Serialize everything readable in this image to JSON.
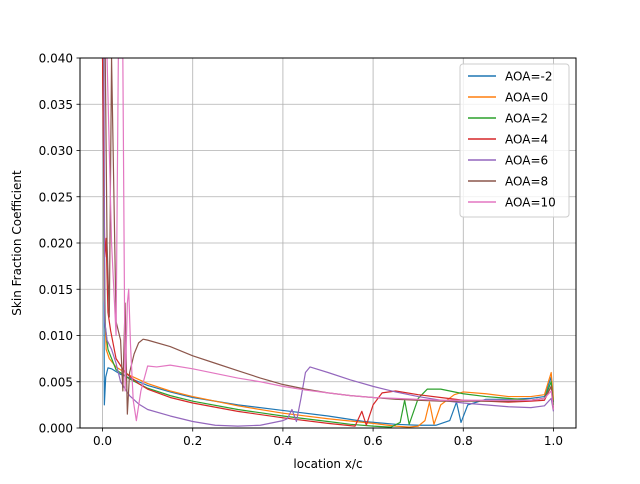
{
  "chart_data": {
    "type": "line",
    "title": "",
    "xlabel": "location x/c",
    "ylabel": "Skin Fraction Coefficient",
    "xlim": [
      -0.05,
      1.05
    ],
    "ylim": [
      0.0,
      0.04
    ],
    "xticks": [
      "0.0",
      "0.2",
      "0.4",
      "0.6",
      "0.8",
      "1.0"
    ],
    "xtick_values": [
      0.0,
      0.2,
      0.4,
      0.6,
      0.8,
      1.0
    ],
    "yticks": [
      "0.000",
      "0.005",
      "0.010",
      "0.015",
      "0.020",
      "0.025",
      "0.030",
      "0.035",
      "0.040"
    ],
    "ytick_values": [
      0.0,
      0.005,
      0.01,
      0.015,
      0.02,
      0.025,
      0.03,
      0.035,
      0.04
    ],
    "grid": true,
    "legend_position": "top-right",
    "series": [
      {
        "name": "AOA=-2",
        "color": "#1f77b4",
        "points": [
          [
            0.0,
            0.04
          ],
          [
            0.002,
            0.0305
          ],
          [
            0.004,
            0.0025
          ],
          [
            0.007,
            0.0055
          ],
          [
            0.012,
            0.0065
          ],
          [
            0.02,
            0.0064
          ],
          [
            0.04,
            0.0058
          ],
          [
            0.07,
            0.0052
          ],
          [
            0.1,
            0.0046
          ],
          [
            0.15,
            0.0039
          ],
          [
            0.2,
            0.0033
          ],
          [
            0.3,
            0.0025
          ],
          [
            0.4,
            0.0019
          ],
          [
            0.5,
            0.0013
          ],
          [
            0.58,
            0.0007
          ],
          [
            0.65,
            0.0004
          ],
          [
            0.7,
            0.0003
          ],
          [
            0.74,
            0.0003
          ],
          [
            0.77,
            0.0008
          ],
          [
            0.785,
            0.0028
          ],
          [
            0.795,
            0.0006
          ],
          [
            0.81,
            0.0025
          ],
          [
            0.85,
            0.0031
          ],
          [
            0.9,
            0.0031
          ],
          [
            0.95,
            0.0032
          ],
          [
            0.98,
            0.0034
          ],
          [
            0.995,
            0.0055
          ],
          [
            1.0,
            0.0028
          ]
        ]
      },
      {
        "name": "AOA=0",
        "color": "#ff7f0e",
        "points": [
          [
            0.0,
            0.04
          ],
          [
            0.002,
            0.034
          ],
          [
            0.004,
            0.014
          ],
          [
            0.008,
            0.0085
          ],
          [
            0.015,
            0.0075
          ],
          [
            0.03,
            0.0066
          ],
          [
            0.06,
            0.0057
          ],
          [
            0.1,
            0.0048
          ],
          [
            0.15,
            0.004
          ],
          [
            0.2,
            0.0034
          ],
          [
            0.3,
            0.0024
          ],
          [
            0.4,
            0.0016
          ],
          [
            0.5,
            0.001
          ],
          [
            0.6,
            0.0005
          ],
          [
            0.65,
            0.0002
          ],
          [
            0.68,
            0.0001
          ],
          [
            0.7,
            0.0002
          ],
          [
            0.715,
            0.0008
          ],
          [
            0.725,
            0.0028
          ],
          [
            0.735,
            0.0004
          ],
          [
            0.75,
            0.0025
          ],
          [
            0.78,
            0.0036
          ],
          [
            0.8,
            0.0039
          ],
          [
            0.85,
            0.0037
          ],
          [
            0.9,
            0.0034
          ],
          [
            0.95,
            0.0034
          ],
          [
            0.98,
            0.0036
          ],
          [
            0.995,
            0.006
          ],
          [
            1.0,
            0.003
          ]
        ]
      },
      {
        "name": "AOA=2",
        "color": "#2ca02c",
        "points": [
          [
            0.0,
            0.04
          ],
          [
            0.002,
            0.036
          ],
          [
            0.004,
            0.02
          ],
          [
            0.006,
            0.011
          ],
          [
            0.012,
            0.0085
          ],
          [
            0.03,
            0.0063
          ],
          [
            0.06,
            0.0053
          ],
          [
            0.1,
            0.0043
          ],
          [
            0.15,
            0.0035
          ],
          [
            0.2,
            0.0029
          ],
          [
            0.3,
            0.002
          ],
          [
            0.4,
            0.0013
          ],
          [
            0.5,
            0.0007
          ],
          [
            0.55,
            0.0004
          ],
          [
            0.6,
            0.0002
          ],
          [
            0.64,
            0.0001
          ],
          [
            0.66,
            0.0006
          ],
          [
            0.67,
            0.003
          ],
          [
            0.68,
            0.0004
          ],
          [
            0.7,
            0.0032
          ],
          [
            0.72,
            0.0042
          ],
          [
            0.75,
            0.0042
          ],
          [
            0.8,
            0.0037
          ],
          [
            0.85,
            0.0034
          ],
          [
            0.9,
            0.0032
          ],
          [
            0.95,
            0.003
          ],
          [
            0.98,
            0.0032
          ],
          [
            0.995,
            0.005
          ],
          [
            1.0,
            0.0025
          ]
        ]
      },
      {
        "name": "AOA=4",
        "color": "#d62728",
        "points": [
          [
            0.0,
            0.04
          ],
          [
            0.002,
            0.03
          ],
          [
            0.005,
            0.0185
          ],
          [
            0.008,
            0.0205
          ],
          [
            0.012,
            0.0125
          ],
          [
            0.018,
            0.0105
          ],
          [
            0.03,
            0.0075
          ],
          [
            0.05,
            0.006
          ],
          [
            0.08,
            0.0048
          ],
          [
            0.1,
            0.0042
          ],
          [
            0.15,
            0.0033
          ],
          [
            0.2,
            0.0027
          ],
          [
            0.3,
            0.0018
          ],
          [
            0.4,
            0.0011
          ],
          [
            0.5,
            0.0005
          ],
          [
            0.56,
            0.0002
          ],
          [
            0.575,
            0.0018
          ],
          [
            0.585,
            0.0003
          ],
          [
            0.6,
            0.0025
          ],
          [
            0.62,
            0.0038
          ],
          [
            0.65,
            0.004
          ],
          [
            0.7,
            0.0036
          ],
          [
            0.75,
            0.0033
          ],
          [
            0.8,
            0.003
          ],
          [
            0.85,
            0.0029
          ],
          [
            0.9,
            0.0028
          ],
          [
            0.95,
            0.0029
          ],
          [
            0.98,
            0.003
          ],
          [
            0.995,
            0.0045
          ],
          [
            1.0,
            0.002
          ]
        ]
      },
      {
        "name": "AOA=6",
        "color": "#9467bd",
        "points": [
          [
            0.0,
            0.04
          ],
          [
            0.003,
            0.04
          ],
          [
            0.005,
            0.0115
          ],
          [
            0.01,
            0.0095
          ],
          [
            0.02,
            0.0085
          ],
          [
            0.03,
            0.007
          ],
          [
            0.04,
            0.005
          ],
          [
            0.06,
            0.0035
          ],
          [
            0.08,
            0.0026
          ],
          [
            0.1,
            0.002
          ],
          [
            0.15,
            0.0013
          ],
          [
            0.2,
            0.0007
          ],
          [
            0.25,
            0.0003
          ],
          [
            0.3,
            0.0002
          ],
          [
            0.35,
            0.0003
          ],
          [
            0.4,
            0.0008
          ],
          [
            0.41,
            0.001
          ],
          [
            0.42,
            0.002
          ],
          [
            0.43,
            0.0007
          ],
          [
            0.44,
            0.0032
          ],
          [
            0.45,
            0.006
          ],
          [
            0.46,
            0.0066
          ],
          [
            0.5,
            0.006
          ],
          [
            0.55,
            0.0052
          ],
          [
            0.6,
            0.0045
          ],
          [
            0.65,
            0.0039
          ],
          [
            0.7,
            0.0034
          ],
          [
            0.75,
            0.003
          ],
          [
            0.8,
            0.0027
          ],
          [
            0.85,
            0.0025
          ],
          [
            0.9,
            0.0023
          ],
          [
            0.95,
            0.0022
          ],
          [
            0.98,
            0.0024
          ],
          [
            0.995,
            0.0032
          ],
          [
            1.0,
            0.0018
          ]
        ]
      },
      {
        "name": "AOA=8",
        "color": "#8c564b",
        "points": [
          [
            0.003,
            0.04
          ],
          [
            0.006,
            0.04
          ],
          [
            0.01,
            0.02
          ],
          [
            0.015,
            0.012
          ],
          [
            0.02,
            0.04
          ],
          [
            0.03,
            0.0115
          ],
          [
            0.04,
            0.0095
          ],
          [
            0.045,
            0.004
          ],
          [
            0.05,
            0.0135
          ],
          [
            0.055,
            0.0015
          ],
          [
            0.06,
            0.006
          ],
          [
            0.07,
            0.008
          ],
          [
            0.08,
            0.0092
          ],
          [
            0.09,
            0.0096
          ],
          [
            0.1,
            0.0095
          ],
          [
            0.15,
            0.0088
          ],
          [
            0.2,
            0.0078
          ],
          [
            0.25,
            0.007
          ],
          [
            0.3,
            0.0062
          ],
          [
            0.35,
            0.0054
          ],
          [
            0.4,
            0.0047
          ],
          [
            0.45,
            0.0042
          ],
          [
            0.5,
            0.0038
          ],
          [
            0.55,
            0.0035
          ],
          [
            0.6,
            0.0033
          ],
          [
            0.65,
            0.0031
          ],
          [
            0.7,
            0.003
          ],
          [
            0.75,
            0.0029
          ],
          [
            0.8,
            0.0029
          ],
          [
            0.85,
            0.0029
          ],
          [
            0.9,
            0.0029
          ],
          [
            0.95,
            0.003
          ],
          [
            0.98,
            0.0032
          ],
          [
            0.995,
            0.0045
          ],
          [
            1.0,
            0.002
          ]
        ]
      },
      {
        "name": "AOA=10",
        "color": "#e377c2",
        "points": [
          [
            0.0,
            0.04
          ],
          [
            0.01,
            0.04
          ],
          [
            0.02,
            0.02
          ],
          [
            0.03,
            0.01
          ],
          [
            0.035,
            0.04
          ],
          [
            0.045,
            0.04
          ],
          [
            0.05,
            0.004
          ],
          [
            0.055,
            0.0135
          ],
          [
            0.058,
            0.015
          ],
          [
            0.062,
            0.009
          ],
          [
            0.068,
            0.003
          ],
          [
            0.075,
            0.0008
          ],
          [
            0.085,
            0.004
          ],
          [
            0.1,
            0.0067
          ],
          [
            0.12,
            0.0066
          ],
          [
            0.15,
            0.0068
          ],
          [
            0.2,
            0.0064
          ],
          [
            0.25,
            0.0059
          ],
          [
            0.3,
            0.0054
          ],
          [
            0.35,
            0.005
          ],
          [
            0.4,
            0.0045
          ],
          [
            0.45,
            0.0041
          ],
          [
            0.5,
            0.0038
          ],
          [
            0.55,
            0.0035
          ],
          [
            0.6,
            0.0033
          ],
          [
            0.65,
            0.0032
          ],
          [
            0.7,
            0.0031
          ],
          [
            0.75,
            0.003
          ],
          [
            0.8,
            0.003
          ],
          [
            0.85,
            0.003
          ],
          [
            0.9,
            0.003
          ],
          [
            0.95,
            0.003
          ],
          [
            0.98,
            0.0032
          ],
          [
            0.995,
            0.004
          ],
          [
            1.0,
            0.002
          ]
        ]
      }
    ]
  }
}
